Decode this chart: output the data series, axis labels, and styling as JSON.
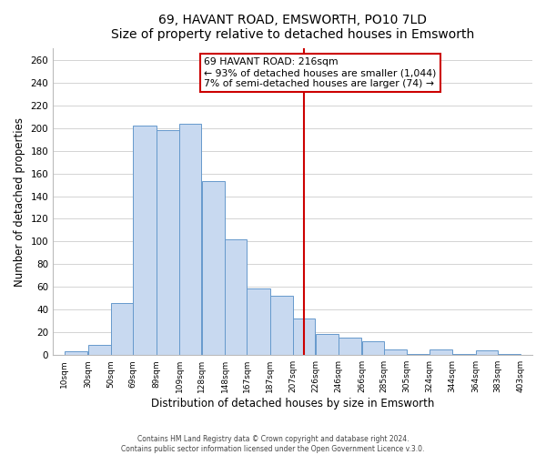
{
  "title": "69, HAVANT ROAD, EMSWORTH, PO10 7LD",
  "subtitle": "Size of property relative to detached houses in Emsworth",
  "xlabel": "Distribution of detached houses by size in Emsworth",
  "ylabel": "Number of detached properties",
  "bar_left_edges": [
    10,
    30,
    50,
    69,
    89,
    109,
    128,
    148,
    167,
    187,
    207,
    226,
    246,
    266,
    285,
    305,
    324,
    344,
    364,
    383
  ],
  "bar_heights": [
    3,
    9,
    46,
    202,
    198,
    204,
    153,
    102,
    59,
    52,
    32,
    19,
    15,
    12,
    5,
    1,
    5,
    1,
    4,
    1
  ],
  "bar_widths": [
    20,
    20,
    19,
    20,
    20,
    19,
    20,
    19,
    20,
    20,
    19,
    20,
    20,
    19,
    20,
    19,
    20,
    20,
    19,
    20
  ],
  "bar_color": "#c8d9f0",
  "bar_edge_color": "#6699cc",
  "vline_x": 216,
  "vline_color": "#cc0000",
  "annotation_title": "69 HAVANT ROAD: 216sqm",
  "annotation_line1": "← 93% of detached houses are smaller (1,044)",
  "annotation_line2": "7% of semi-detached houses are larger (74) →",
  "annotation_box_color": "#ffffff",
  "annotation_box_edge_color": "#cc0000",
  "tick_labels": [
    "10sqm",
    "30sqm",
    "50sqm",
    "69sqm",
    "89sqm",
    "109sqm",
    "128sqm",
    "148sqm",
    "167sqm",
    "187sqm",
    "207sqm",
    "226sqm",
    "246sqm",
    "266sqm",
    "285sqm",
    "305sqm",
    "324sqm",
    "344sqm",
    "364sqm",
    "383sqm",
    "403sqm"
  ],
  "tick_positions": [
    10,
    30,
    50,
    69,
    89,
    109,
    128,
    148,
    167,
    187,
    207,
    226,
    246,
    266,
    285,
    305,
    324,
    344,
    364,
    383,
    403
  ],
  "yticks": [
    0,
    20,
    40,
    60,
    80,
    100,
    120,
    140,
    160,
    180,
    200,
    220,
    240,
    260
  ],
  "ylim": [
    0,
    270
  ],
  "xlim": [
    0,
    413
  ],
  "footer_line1": "Contains HM Land Registry data © Crown copyright and database right 2024.",
  "footer_line2": "Contains public sector information licensed under the Open Government Licence v.3.0.",
  "grid_color": "#cccccc",
  "background_color": "#ffffff"
}
